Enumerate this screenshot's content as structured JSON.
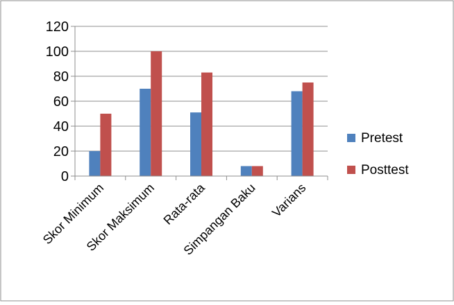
{
  "chart_data": {
    "type": "bar",
    "categories": [
      "Skor Minimum",
      "Skor Maksimum",
      "Rata-rata",
      "Simpangan Baku",
      "Varians"
    ],
    "series": [
      {
        "name": "Pretest",
        "values": [
          20,
          70,
          51,
          8,
          68
        ]
      },
      {
        "name": "Posttest",
        "values": [
          50,
          100,
          83,
          8,
          75
        ]
      }
    ],
    "yticks": [
      0,
      20,
      40,
      60,
      80,
      100,
      120
    ],
    "ylim": [
      0,
      120
    ],
    "grid": true,
    "legend_position": "right",
    "colors": {
      "Pretest": "#4f81bd",
      "Posttest": "#c0504d"
    }
  }
}
